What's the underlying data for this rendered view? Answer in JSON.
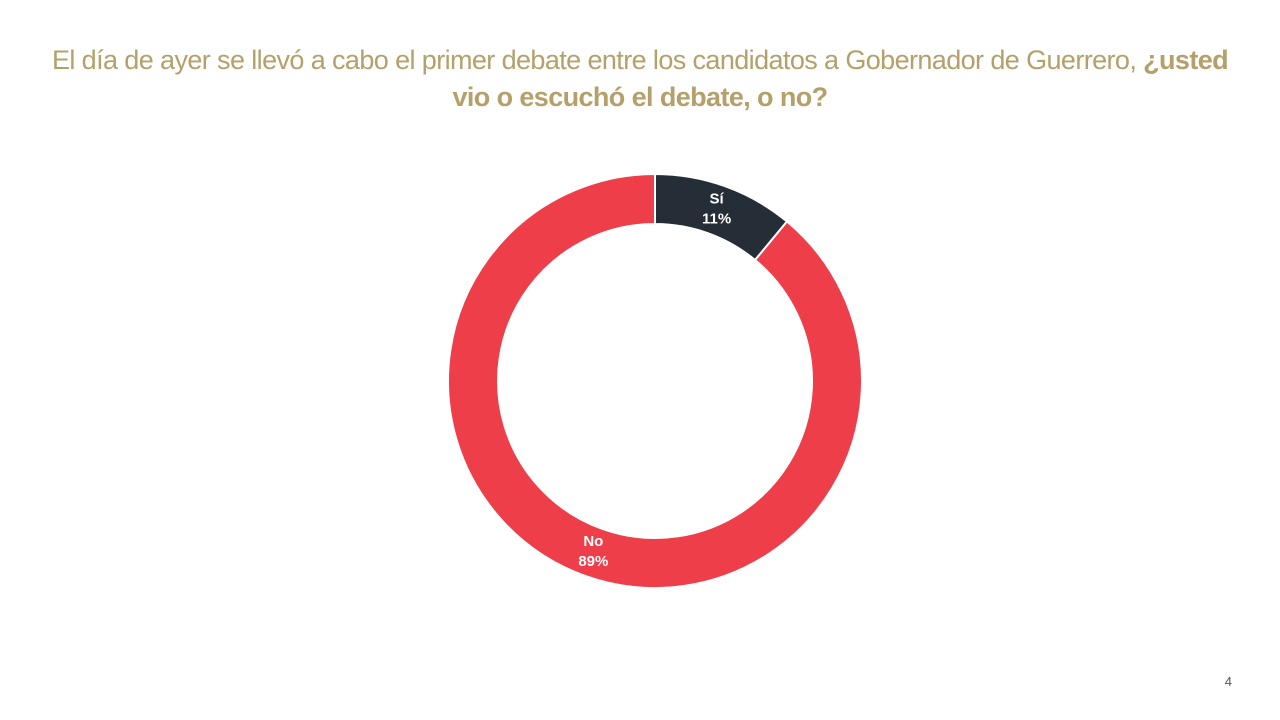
{
  "chart_data": {
    "type": "donut",
    "title": "El día de ayer se llevó a cabo el primer debate entre los candidatos a Gobernador de Guerrero, ",
    "title_emphasis": "¿usted vio o escuchó el debate, o no?",
    "categories": [
      "Sí",
      "No"
    ],
    "values": [
      11,
      89
    ],
    "value_labels": [
      "11%",
      "89%"
    ],
    "colors": [
      "#252d36",
      "#ee3e4a"
    ]
  },
  "page_number": 4
}
